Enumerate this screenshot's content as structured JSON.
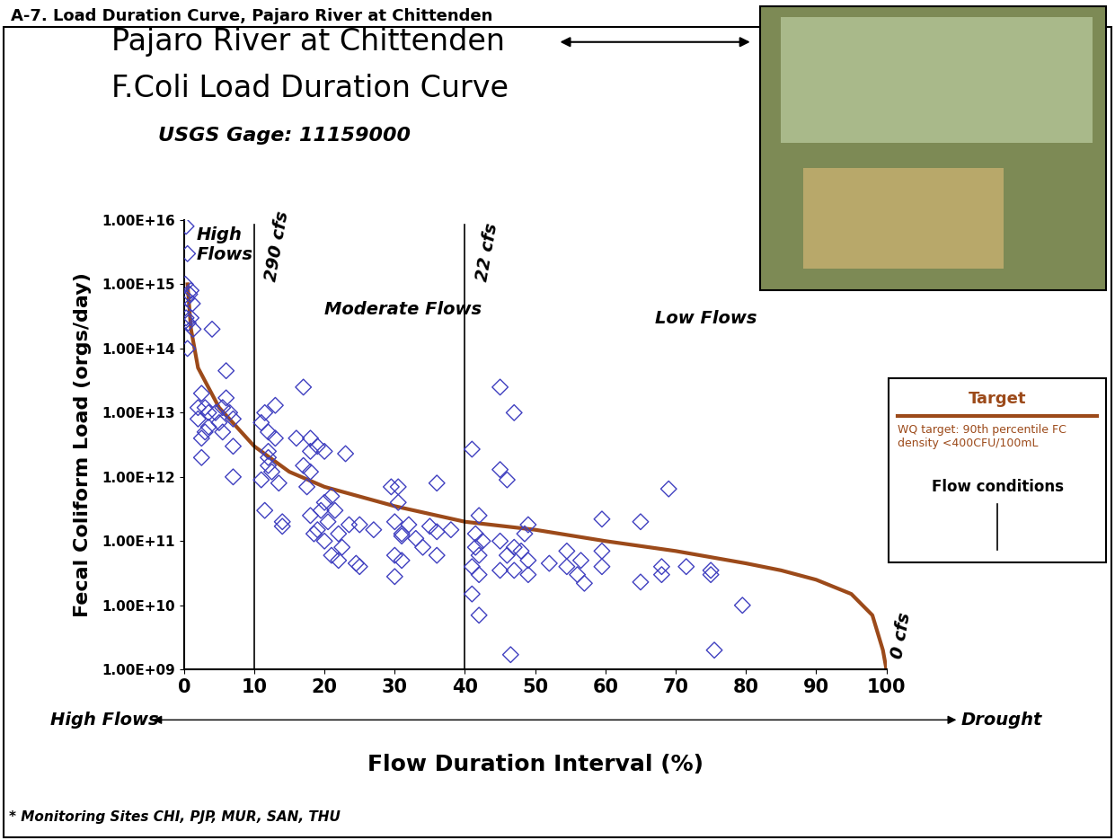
{
  "header": "A-7. Load Duration Curve, Pajaro River at Chittenden",
  "chart_data": {
    "type": "scatter",
    "title": "Pajaro River at Chittenden",
    "subtitle": "F.Coli Load Duration Curve",
    "gage": "USGS Gage: 11159000",
    "x_label": "Flow Duration Interval (%)",
    "y_label": "Fecal Coliform Load (orgs/day)",
    "x_axis_ends": [
      "High Flows",
      "Drought"
    ],
    "footnote": "* Monitoring Sites CHI, PJP, MUR, SAN, THU",
    "log": "y",
    "grid": false,
    "xlim": [
      0,
      100
    ],
    "ylim": [
      1000000000.0,
      1e+16
    ],
    "xticks": [
      0,
      10,
      20,
      30,
      40,
      50,
      60,
      70,
      80,
      90,
      100
    ],
    "yticks": [
      {
        "value": 1000000000.0,
        "label": "1.00E+09"
      },
      {
        "value": 10000000000.0,
        "label": "1.00E+10"
      },
      {
        "value": 100000000000.0,
        "label": "1.00E+11"
      },
      {
        "value": 1000000000000.0,
        "label": "1.00E+12"
      },
      {
        "value": 10000000000000.0,
        "label": "1.00E+13"
      },
      {
        "value": 100000000000000.0,
        "label": "1.00E+14"
      },
      {
        "value": 1000000000000000.0,
        "label": "1.00E+15"
      },
      {
        "value": 1e+16,
        "label": "1.00E+16"
      }
    ],
    "flow_lines": [
      {
        "x": 10,
        "label": "290 cfs"
      },
      {
        "x": 40,
        "label": "22 cfs"
      }
    ],
    "end_label": {
      "x": 100,
      "label": "0 cfs"
    },
    "regions": [
      "High\nFlows",
      "Moderate Flows",
      "Low Flows"
    ],
    "legend_box": {
      "title": "Target",
      "note": "WQ target: 90th percentile FC\ndensity <400CFU/100mL",
      "flow_label": "Flow conditions"
    },
    "series": [
      {
        "name": "Target",
        "type": "line",
        "color": "#9c4a1a",
        "line_style": "solid",
        "x": [
          0.5,
          1,
          2,
          5,
          10,
          15,
          20,
          30,
          40,
          50,
          60,
          70,
          80,
          85,
          90,
          95,
          98,
          99.5,
          100
        ],
        "values": [
          1000000000000000.0,
          200000000000000.0,
          50000000000000.0,
          12000000000000.0,
          3000000000000.0,
          1200000000000.0,
          700000000000.0,
          350000000000.0,
          200000000000.0,
          150000000000.0,
          100000000000.0,
          70000000000.0,
          45000000000.0,
          35000000000.0,
          25000000000.0,
          15000000000.0,
          7000000000.0,
          2000000000.0,
          1000000000.0
        ]
      },
      {
        "type": "scatter",
        "color": "#4040c0",
        "marker": "D",
        "x": [
          0.3,
          0.5,
          0.2,
          0.4,
          0.8,
          1,
          1.2,
          0.3,
          0.6,
          1,
          1.3,
          0.5,
          4,
          2.5,
          3,
          2,
          3.5,
          2.5,
          3,
          4.5,
          5,
          5.5,
          6,
          6,
          6.5,
          7,
          5.5,
          7,
          7,
          2.5,
          2,
          3.5,
          11,
          11.5,
          12,
          12,
          12,
          11,
          12.5,
          13,
          13,
          11.5,
          12,
          13.5,
          14,
          14,
          16,
          17,
          17,
          17.5,
          18,
          18,
          18,
          18,
          18.5,
          19,
          19,
          19.5,
          20,
          20,
          20.5,
          20,
          21,
          21,
          21.5,
          22,
          22,
          22.5,
          23,
          23.5,
          24.5,
          25,
          25,
          27,
          29.5,
          30,
          30,
          30,
          30.5,
          30.5,
          31,
          31,
          31,
          32,
          33,
          34,
          35,
          36,
          36,
          36,
          38,
          41,
          41,
          41,
          41.5,
          41.5,
          42,
          42,
          42,
          42,
          42.5,
          45,
          45,
          45,
          45,
          46,
          46.5,
          46,
          47,
          47,
          47,
          48,
          48.5,
          49,
          49,
          49,
          52,
          54.5,
          54.5,
          56,
          56.5,
          57,
          59.5,
          59.5,
          59.5,
          65,
          65,
          68,
          68,
          69,
          71.5,
          75,
          75,
          75.5,
          79.5
        ],
        "values": [
          8000000000000000.0,
          3000000000000000.0,
          1000000000000000.0,
          600000000000000.0,
          700000000000000.0,
          800000000000000.0,
          500000000000000.0,
          300000000000000.0,
          250000000000000.0,
          300000000000000.0,
          200000000000000.0,
          100000000000000.0,
          200000000000000.0,
          20000000000000.0,
          12000000000000.0,
          8000000000000.0,
          6000000000000.0,
          4000000000000.0,
          5000000000000.0,
          10000000000000.0,
          7000000000000.0,
          12000000000000.0,
          45000000000000.0,
          17000000000000.0,
          10000000000000.0,
          8000000000000.0,
          5000000000000.0,
          3000000000000.0,
          1000000000000.0,
          2000000000000.0,
          12000000000000.0,
          10000000000000.0,
          7000000000000.0,
          10000000000000.0,
          5000000000000.0,
          2500000000000.0,
          1500000000000.0,
          900000000000.0,
          1200000000000.0,
          13000000000000.0,
          4000000000000.0,
          300000000000.0,
          2000000000000.0,
          800000000000.0,
          200000000000.0,
          170000000000.0,
          4000000000000.0,
          25000000000000.0,
          1500000000000.0,
          700000000000.0,
          4000000000000.0,
          2500000000000.0,
          1200000000000.0,
          250000000000.0,
          130000000000.0,
          3000000000000.0,
          150000000000.0,
          300000000000.0,
          400000000000.0,
          2500000000000.0,
          200000000000.0,
          100000000000.0,
          60000000000.0,
          500000000000.0,
          300000000000.0,
          130000000000.0,
          50000000000.0,
          80000000000.0,
          2300000000000.0,
          180000000000.0,
          45000000000.0,
          40000000000.0,
          180000000000.0,
          150000000000.0,
          700000000000.0,
          28000000000.0,
          60000000000.0,
          200000000000.0,
          700000000000.0,
          400000000000.0,
          130000000000.0,
          50000000000.0,
          120000000000.0,
          180000000000.0,
          110000000000.0,
          80000000000.0,
          170000000000.0,
          800000000000.0,
          140000000000.0,
          60000000000.0,
          150000000000.0,
          2700000000000.0,
          15000000000.0,
          40000000000.0,
          80000000000.0,
          130000000000.0,
          250000000000.0,
          7000000000.0,
          30000000000.0,
          60000000000.0,
          100000000000.0,
          25000000000000.0,
          1300000000000.0,
          100000000000.0,
          35000000000.0,
          900000000000.0,
          1700000000.0,
          60000000000.0,
          10000000000000.0,
          80000000000.0,
          35000000000.0,
          70000000000.0,
          130000000000.0,
          180000000000.0,
          30000000000.0,
          50000000000.0,
          45000000000.0,
          70000000000.0,
          40000000000.0,
          30000000000.0,
          50000000000.0,
          22000000000.0,
          220000000000.0,
          70000000000.0,
          40000000000.0,
          200000000000.0,
          23000000000.0,
          40000000000.0,
          30000000000.0,
          650000000000.0,
          40000000000.0,
          35000000000.0,
          30000000000.0,
          2000000000.0,
          10000000000.0
        ]
      }
    ]
  }
}
